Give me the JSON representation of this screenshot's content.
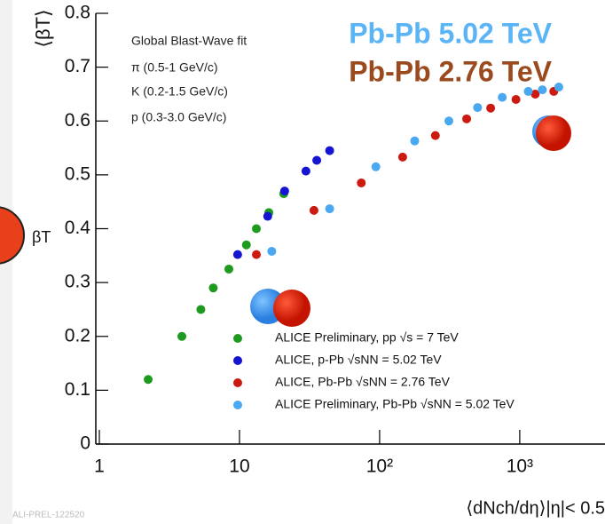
{
  "chart_data": {
    "type": "scatter",
    "y_label": "⟨βT⟩",
    "x_label": "⟨dNch/dη⟩|η|< 0.5",
    "log_x": true,
    "xlim": [
      1,
      4000
    ],
    "ylim": [
      0,
      0.8
    ],
    "xticks": [
      1,
      10,
      {
        "value": 100,
        "label": "10²"
      },
      {
        "value": 1000,
        "label": "10³"
      }
    ],
    "yticks": [
      0,
      0.1,
      0.2,
      0.3,
      0.4,
      0.5,
      0.6,
      0.7,
      0.8
    ],
    "annotations": [
      "Global Blast-Wave fit",
      "π (0.5-1 GeV/c)",
      "K (0.2-1.5 GeV/c)",
      "p (0.3-3.0 GeV/c)",
      "βT",
      "ALI-PREL-122520"
    ],
    "headline": [
      {
        "text": "Pb-Pb 5.02 TeV",
        "color": "#5ab4f5"
      },
      {
        "text": "Pb-Pb 2.76 TeV",
        "color": "#9a4a1e"
      }
    ],
    "series": [
      {
        "name": "ALICE Preliminary, pp √s = 7 TeV",
        "color": "#1e9b1e",
        "x": [
          2.23,
          3.88,
          5.3,
          6.5,
          8.4,
          11.2,
          13.2,
          16.2,
          20.7
        ],
        "values": [
          0.12,
          0.2,
          0.25,
          0.29,
          0.325,
          0.37,
          0.4,
          0.43,
          0.465
        ]
      },
      {
        "name": "ALICE, p-Pb √sNN = 5.02 TeV",
        "color": "#1414d2",
        "x": [
          9.7,
          15.9,
          21,
          29.8,
          35.6,
          44
        ],
        "values": [
          0.352,
          0.423,
          0.47,
          0.507,
          0.527,
          0.545
        ]
      },
      {
        "name": "ALICE, Pb-Pb √sNN = 2.76 TeV",
        "color": "#cc1a10",
        "x": [
          13.2,
          34,
          74,
          146,
          250,
          418,
          620,
          940,
          1290,
          1750
        ],
        "values": [
          0.352,
          0.434,
          0.485,
          0.533,
          0.573,
          0.604,
          0.624,
          0.64,
          0.65,
          0.655
        ]
      },
      {
        "name": "ALICE Preliminary, Pb-Pb √sNN = 5.02 TeV",
        "color": "#4aa8f0",
        "x": [
          17,
          44,
          94,
          178,
          312,
          500,
          750,
          1150,
          1450,
          1900
        ],
        "values": [
          0.358,
          0.437,
          0.515,
          0.563,
          0.6,
          0.625,
          0.644,
          0.655,
          0.658,
          0.663
        ]
      }
    ]
  }
}
